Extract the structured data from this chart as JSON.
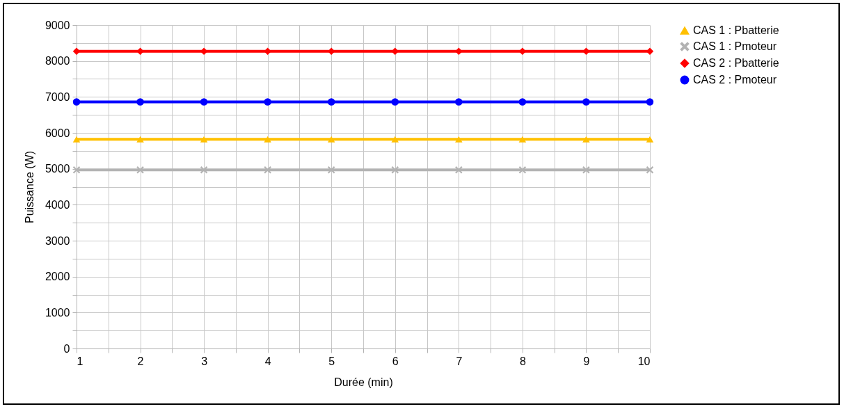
{
  "chart_data": {
    "type": "line",
    "xlabel": "Durée (min)",
    "ylabel": "Puissance (W)",
    "x": [
      1,
      2,
      3,
      4,
      5,
      6,
      7,
      8,
      9,
      10
    ],
    "series": [
      {
        "name": "CAS 1 : Pbatterie",
        "color": "#ffc000",
        "marker": "triangle",
        "values": [
          5820,
          5820,
          5820,
          5820,
          5820,
          5820,
          5820,
          5820,
          5820,
          5820
        ]
      },
      {
        "name": "CAS 1 : Pmoteur",
        "color": "#b3b3b3",
        "marker": "cross",
        "values": [
          4970,
          4970,
          4970,
          4970,
          4970,
          4970,
          4970,
          4970,
          4970,
          4970
        ]
      },
      {
        "name": "CAS 2 : Pbatterie",
        "color": "#ff0000",
        "marker": "diamond",
        "values": [
          8270,
          8270,
          8270,
          8270,
          8270,
          8270,
          8270,
          8270,
          8270,
          8270
        ]
      },
      {
        "name": "CAS 2 : Pmoteur",
        "color": "#0000ff",
        "marker": "circle",
        "values": [
          6860,
          6860,
          6860,
          6860,
          6860,
          6860,
          6860,
          6860,
          6860,
          6860
        ]
      }
    ],
    "xlim": [
      1,
      10
    ],
    "xticks": [
      1,
      {
        "value": 1.5,
        "label": null
      },
      2,
      {
        "value": 2.5,
        "label": null
      },
      3,
      {
        "value": 3.5,
        "label": null
      },
      4,
      {
        "value": 4.5,
        "label": null
      },
      5,
      {
        "value": 5.5,
        "label": null
      },
      6,
      {
        "value": 6.5,
        "label": null
      },
      7,
      {
        "value": 7.5,
        "label": null
      },
      8,
      {
        "value": 8.5,
        "label": null
      },
      9,
      {
        "value": 9.5,
        "label": null
      },
      10
    ],
    "ylim": [
      0,
      9000
    ],
    "yticks": [
      0,
      {
        "value": 500,
        "label": null
      },
      1000,
      {
        "value": 1500,
        "label": null
      },
      2000,
      {
        "value": 2500,
        "label": null
      },
      3000,
      {
        "value": 3500,
        "label": null
      },
      4000,
      {
        "value": 4500,
        "label": null
      },
      5000,
      {
        "value": 5500,
        "label": null
      },
      6000,
      {
        "value": 6500,
        "label": null
      },
      7000,
      {
        "value": 7500,
        "label": null
      },
      8000,
      {
        "value": 8500,
        "label": null
      },
      9000
    ],
    "grid": true,
    "legend": "right",
    "line_style": "solid"
  }
}
